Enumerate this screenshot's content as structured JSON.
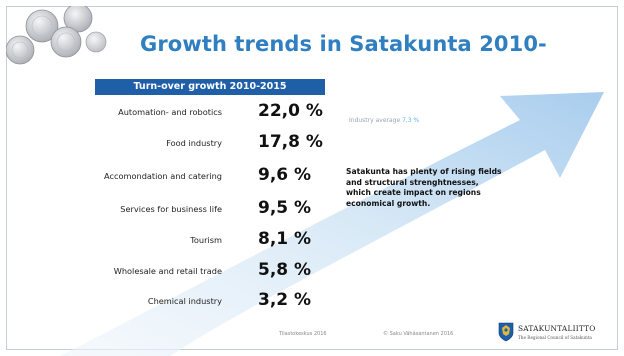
{
  "slide": {
    "title": "Growth trends in Satakunta 2010-",
    "subtitle": "Turn-over growth 2010-2015",
    "rows": [
      {
        "label": "Automation- and robotics",
        "value": "22,0 %"
      },
      {
        "label": "Food industry",
        "value": "17,8 %"
      },
      {
        "label": "Accomondation and catering",
        "value": "9,6 %"
      },
      {
        "label": "Services for business life",
        "value": "9,5 %"
      },
      {
        "label": "Tourism",
        "value": "8,1 %"
      },
      {
        "label": "Wholesale and retail trade",
        "value": "5,8 %"
      },
      {
        "label": "Chemical industry",
        "value": "3,2 %"
      }
    ],
    "industry_average_label": "Industry average",
    "industry_average_value": "7,3 %",
    "callout": "Satakunta has plenty of rising fields and structural strenghtnesses, which create impact on regions economical growth.",
    "footer_left": "Tilastokeskus 2016",
    "footer_mid": "© Saku Vähäsantanen 2016",
    "logo_name": "SATAKUNTALIITTO",
    "logo_sub": "The Regional Council of Satakunta"
  },
  "colors": {
    "title": "#2f7fc1",
    "subtitle_bar": "#1f5fa8",
    "arrow": "#cfe4f5",
    "industry_average_value": "#5fb7e5"
  },
  "icons": {
    "coins": "coins-decoration",
    "arrow": "growth-arrow",
    "logo": "satakunta-coat-of-arms"
  }
}
